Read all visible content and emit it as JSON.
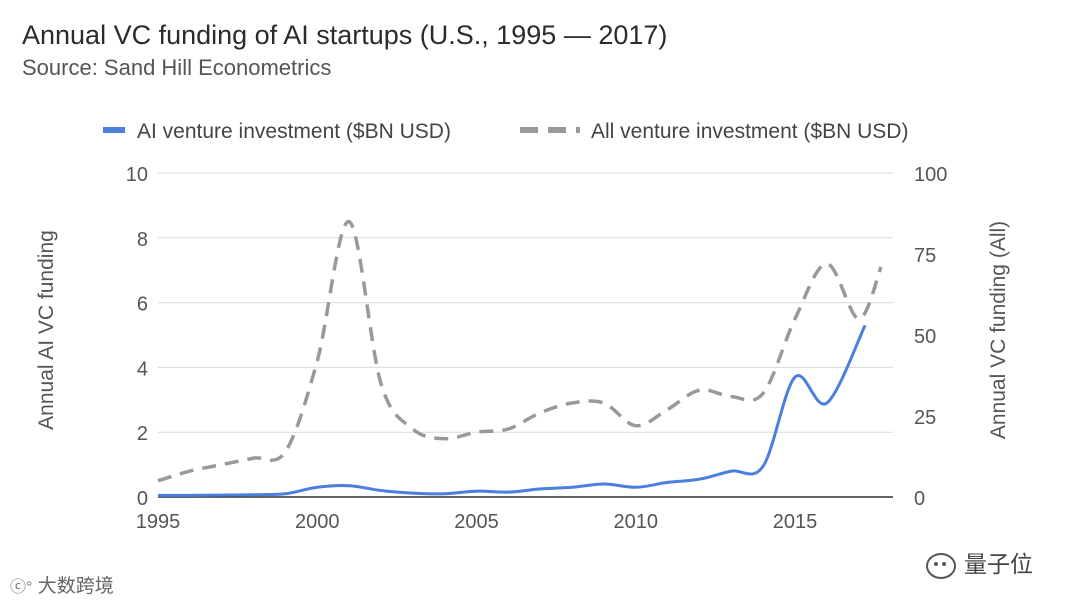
{
  "chart_data": {
    "type": "line",
    "title": "Annual VC funding of AI startups (U.S., 1995 — 2017)",
    "subtitle": "Source: Sand Hill Econometrics",
    "ylabel_left": "Annual AI VC funding",
    "ylabel_right": "Annual VC funding (All)",
    "xlim": [
      1995,
      2017.2
    ],
    "ylim_left": [
      0,
      10
    ],
    "ylim_right": [
      0,
      100
    ],
    "x_ticks": [
      "1995",
      "2000",
      "2005",
      "2010",
      "2015"
    ],
    "y_ticks_left": [
      "0",
      "2",
      "4",
      "6",
      "8",
      "10"
    ],
    "y_ticks_right": [
      "0",
      "25",
      "50",
      "75",
      "100"
    ],
    "grid": true,
    "legend_position": "top",
    "series": [
      {
        "name": "AI venture investment ($BN USD)",
        "axis": "left",
        "color": "#4a7fe0",
        "style": "solid",
        "x": [
          1995,
          1996,
          1997,
          1998,
          1999,
          2000,
          2001,
          2002,
          2003,
          2004,
          2005,
          2006,
          2007,
          2008,
          2009,
          2010,
          2011,
          2012,
          2013,
          2014,
          2015,
          2016,
          2017.2
        ],
        "y": [
          0.05,
          0.05,
          0.06,
          0.07,
          0.1,
          0.3,
          0.35,
          0.2,
          0.12,
          0.1,
          0.18,
          0.15,
          0.25,
          0.3,
          0.4,
          0.3,
          0.45,
          0.55,
          0.8,
          0.95,
          3.7,
          2.9,
          5.3
        ]
      },
      {
        "name": "All venture investment ($BN USD)",
        "axis": "right",
        "color": "#999999",
        "style": "dashed",
        "x": [
          1995,
          1996,
          1997,
          1998,
          1999,
          2000,
          2001,
          2002,
          2003,
          2004,
          2005,
          2006,
          2007,
          2008,
          2009,
          2010,
          2011,
          2012,
          2013,
          2014,
          2015,
          2016,
          2017,
          2017.7
        ],
        "y": [
          5,
          8,
          10,
          12,
          14,
          42,
          85,
          35,
          21,
          18,
          20,
          21,
          26,
          29,
          29,
          22,
          27,
          33,
          31,
          32,
          55,
          72,
          55,
          71
        ]
      }
    ]
  },
  "watermarks": {
    "left": "大数跨境",
    "right": "量子位"
  }
}
